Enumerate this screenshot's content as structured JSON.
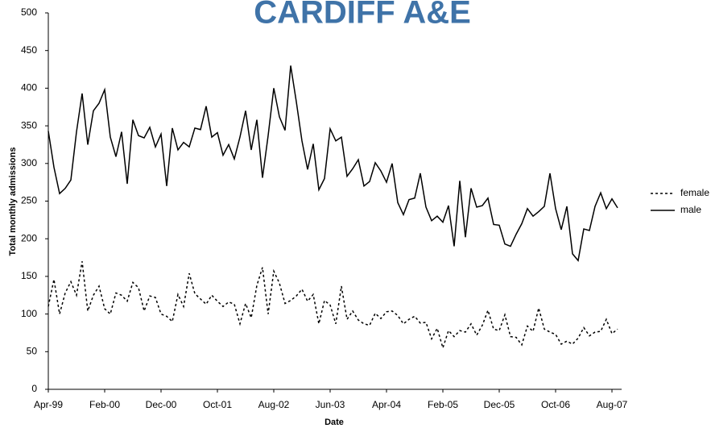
{
  "chart_data": {
    "type": "line",
    "title": "CARDIFF A&E",
    "x_label": "Date",
    "y_label": "Total monthly admissions",
    "categories": [
      "Apr-99",
      null,
      null,
      null,
      null,
      null,
      null,
      null,
      null,
      null,
      "Feb-00",
      null,
      null,
      null,
      null,
      null,
      null,
      null,
      null,
      null,
      "Dec-00",
      null,
      null,
      null,
      null,
      null,
      null,
      null,
      null,
      null,
      "Oct-01",
      null,
      null,
      null,
      null,
      null,
      null,
      null,
      null,
      null,
      "Aug-02",
      null,
      null,
      null,
      null,
      null,
      null,
      null,
      null,
      null,
      "Jun-03",
      null,
      null,
      null,
      null,
      null,
      null,
      null,
      null,
      null,
      "Apr-04",
      null,
      null,
      null,
      null,
      null,
      null,
      null,
      null,
      null,
      "Feb-05",
      null,
      null,
      null,
      null,
      null,
      null,
      null,
      null,
      null,
      "Dec-05",
      null,
      null,
      null,
      null,
      null,
      null,
      null,
      null,
      null,
      "Oct-06",
      null,
      null,
      null,
      null,
      null,
      null,
      null,
      null,
      null,
      "Aug-07",
      null
    ],
    "series": [
      {
        "name": "female",
        "color": "#000000",
        "dash": true,
        "values": [
          110,
          146,
          100,
          128,
          143,
          125,
          170,
          104,
          125,
          137,
          107,
          100,
          128,
          125,
          117,
          142,
          135,
          104,
          124,
          122,
          100,
          97,
          90,
          126,
          110,
          154,
          127,
          120,
          113,
          125,
          117,
          110,
          116,
          113,
          87,
          114,
          95,
          138,
          162,
          100,
          157,
          141,
          114,
          118,
          124,
          133,
          117,
          126,
          87,
          118,
          112,
          87,
          137,
          93,
          104,
          92,
          87,
          85,
          101,
          94,
          103,
          104,
          98,
          87,
          93,
          97,
          88,
          89,
          67,
          81,
          55,
          78,
          70,
          78,
          76,
          87,
          72,
          85,
          105,
          80,
          78,
          99,
          70,
          69,
          59,
          84,
          77,
          108,
          80,
          76,
          73,
          60,
          64,
          60,
          68,
          82,
          71,
          76,
          77,
          93,
          74,
          80
        ]
      },
      {
        "name": "male",
        "color": "#000000",
        "dash": false,
        "values": [
          343,
          295,
          260,
          267,
          278,
          342,
          393,
          325,
          370,
          380,
          398,
          335,
          309,
          342,
          273,
          358,
          337,
          334,
          348,
          322,
          339,
          270,
          347,
          318,
          328,
          322,
          347,
          345,
          376,
          335,
          341,
          311,
          325,
          306,
          335,
          370,
          318,
          358,
          281,
          337,
          400,
          362,
          344,
          430,
          382,
          330,
          292,
          326,
          265,
          280,
          346,
          330,
          335,
          283,
          293,
          305,
          270,
          276,
          301,
          290,
          275,
          300,
          248,
          232,
          252,
          254,
          287,
          242,
          224,
          230,
          222,
          244,
          190,
          277,
          202,
          267,
          242,
          244,
          254,
          219,
          218,
          193,
          190,
          206,
          220,
          240,
          230,
          236,
          243,
          287,
          240,
          212,
          243,
          180,
          171,
          213,
          211,
          243,
          261,
          240,
          253,
          241
        ]
      }
    ],
    "ylim": [
      0,
      500
    ],
    "yticks": [
      0,
      50,
      100,
      150,
      200,
      250,
      300,
      350,
      400,
      450,
      500
    ],
    "legend": "right"
  }
}
